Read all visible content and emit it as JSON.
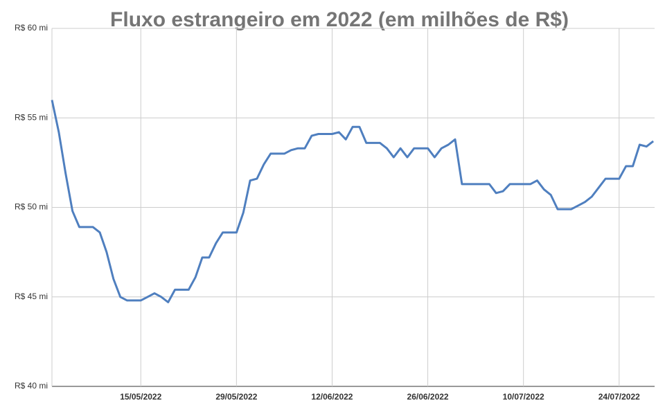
{
  "chart_data": {
    "type": "line",
    "title": "Fluxo estrangeiro em 2022 (em milhões de R$)",
    "categories": [
      null,
      null,
      null,
      null,
      null,
      null,
      null,
      null,
      null,
      null,
      null,
      null,
      null,
      "15/05/2022",
      null,
      null,
      null,
      null,
      null,
      null,
      null,
      null,
      null,
      null,
      null,
      null,
      null,
      "29/05/2022",
      null,
      null,
      null,
      null,
      null,
      null,
      null,
      null,
      null,
      null,
      null,
      null,
      null,
      "12/06/2022",
      null,
      null,
      null,
      null,
      null,
      null,
      null,
      null,
      null,
      null,
      null,
      null,
      null,
      "26/06/2022",
      null,
      null,
      null,
      null,
      null,
      null,
      null,
      null,
      null,
      null,
      null,
      null,
      null,
      "10/07/2022",
      null,
      null,
      null,
      null,
      null,
      null,
      null,
      null,
      null,
      null,
      null,
      null,
      null,
      "24/07/2022",
      null,
      null,
      null,
      null,
      null
    ],
    "series": [
      {
        "name": "Fluxo estrangeiro",
        "color": "#4f7fbf",
        "values": [
          56.0,
          54.2,
          51.9,
          49.8,
          48.9,
          48.9,
          48.9,
          48.6,
          47.5,
          46.0,
          45.0,
          44.8,
          44.8,
          44.8,
          45.0,
          45.2,
          45.0,
          44.7,
          45.4,
          45.4,
          45.4,
          46.1,
          47.2,
          47.2,
          48.0,
          48.6,
          48.6,
          48.6,
          49.7,
          51.5,
          51.6,
          52.4,
          53.0,
          53.0,
          53.0,
          53.2,
          53.3,
          53.3,
          54.0,
          54.1,
          54.1,
          54.1,
          54.2,
          53.8,
          54.5,
          54.5,
          53.6,
          53.6,
          53.6,
          53.3,
          52.8,
          53.3,
          52.8,
          53.3,
          53.3,
          53.3,
          52.8,
          53.3,
          53.5,
          53.8,
          51.3,
          51.3,
          51.3,
          51.3,
          51.3,
          50.8,
          50.9,
          51.3,
          51.3,
          51.3,
          51.3,
          51.5,
          51.0,
          50.7,
          49.9,
          49.9,
          49.9,
          50.1,
          50.3,
          50.6,
          51.1,
          51.6,
          51.6,
          51.6,
          52.3,
          52.3,
          53.5,
          53.4,
          53.7
        ]
      }
    ],
    "ylim": [
      40,
      60
    ],
    "yticks": [
      {
        "value": 40,
        "label": "R$ 40 mi"
      },
      {
        "value": 45,
        "label": "R$ 45 mi"
      },
      {
        "value": 50,
        "label": "R$ 50 mi"
      },
      {
        "value": 55,
        "label": "R$ 55 mi"
      },
      {
        "value": 60,
        "label": "R$ 60 mi"
      }
    ],
    "grid": true
  }
}
